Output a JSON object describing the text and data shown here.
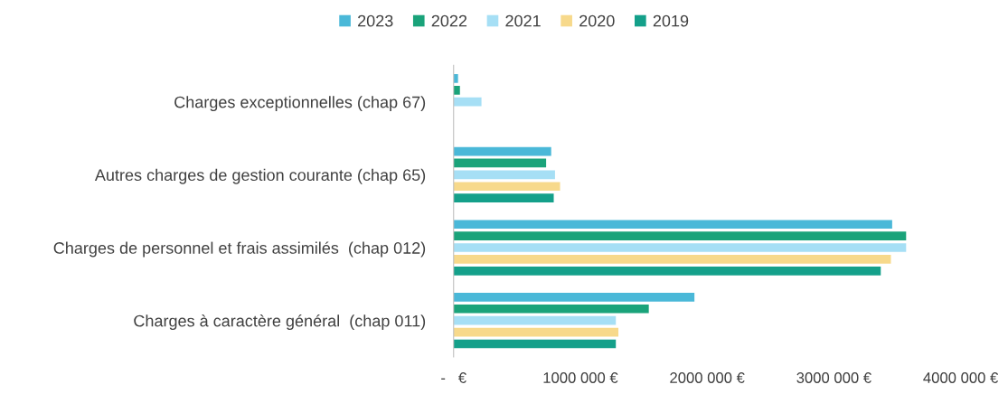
{
  "chart_data": {
    "type": "bar",
    "orientation": "horizontal",
    "categories": [
      "Charges exceptionnelles (chap 67)",
      "Autres charges de gestion courante (chap 65)",
      "Charges de personnel et frais assimilés  (chap 012)",
      "Charges à caractère général  (chap 011)"
    ],
    "series": [
      {
        "name": "2023",
        "color": "#4ab8d8",
        "values": [
          35000,
          770000,
          3460000,
          1900000
        ]
      },
      {
        "name": "2022",
        "color": "#1aa37a",
        "values": [
          50000,
          730000,
          3570000,
          1540000
        ]
      },
      {
        "name": "2021",
        "color": "#a6dff5",
        "values": [
          220000,
          800000,
          3570000,
          1280000
        ]
      },
      {
        "name": "2020",
        "color": "#f7d98b",
        "values": [
          0,
          840000,
          3450000,
          1300000
        ]
      },
      {
        "name": "2019",
        "color": "#14a08a",
        "values": [
          0,
          790000,
          3370000,
          1280000
        ]
      }
    ],
    "xlim": [
      0,
      4000000
    ],
    "xticks": [
      {
        "value": 0,
        "label": "-   €"
      },
      {
        "value": 1000000,
        "label": "1000 000 €"
      },
      {
        "value": 2000000,
        "label": "2000 000 €"
      },
      {
        "value": 3000000,
        "label": "3000 000 €"
      },
      {
        "value": 4000000,
        "label": "4000 000 €"
      }
    ],
    "grid": false,
    "legend": "top"
  }
}
